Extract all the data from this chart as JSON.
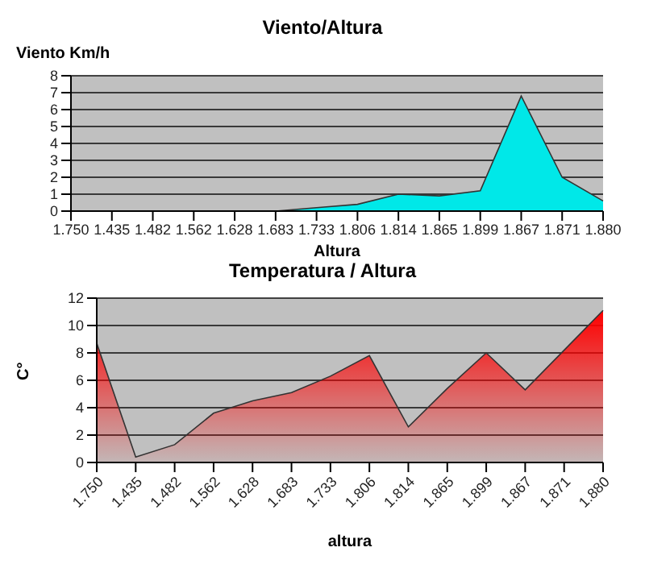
{
  "chart_data": [
    {
      "type": "area",
      "title": "Viento/Altura",
      "xlabel": "Altura",
      "ylabel": "Viento Km/h",
      "categories": [
        "1.750",
        "1.435",
        "1.482",
        "1.562",
        "1.628",
        "1.683",
        "1.733",
        "1.806",
        "1.814",
        "1.865",
        "1.899",
        "1.867",
        "1.871",
        "1.880"
      ],
      "series": [
        {
          "color": "#00e8e8",
          "values": [
            0,
            0,
            0,
            0,
            0,
            0,
            0.2,
            0.4,
            1.0,
            0.9,
            1.2,
            6.8,
            2.0,
            0.6
          ]
        }
      ],
      "ylim": [
        0,
        8
      ],
      "yticks": [
        0,
        1,
        2,
        3,
        4,
        5,
        6,
        7,
        8
      ],
      "grid": "y"
    },
    {
      "type": "area",
      "title": "Temperatura / Altura",
      "xlabel": "altura",
      "ylabel": "C°",
      "categories": [
        "1.750",
        "1.435",
        "1.482",
        "1.562",
        "1.628",
        "1.683",
        "1.733",
        "1.806",
        "1.814",
        "1.865",
        "1.899",
        "1.867",
        "1.871",
        "1.880"
      ],
      "series": [
        {
          "color": "#ff0000",
          "values": [
            8.7,
            0.4,
            1.3,
            3.6,
            4.5,
            5.1,
            6.3,
            7.8,
            2.6,
            5.4,
            8.0,
            5.3,
            8.2,
            11.1
          ]
        }
      ],
      "ylim": [
        0,
        12
      ],
      "yticks": [
        0,
        2,
        4,
        6,
        8,
        10,
        12
      ],
      "grid": "y"
    }
  ]
}
